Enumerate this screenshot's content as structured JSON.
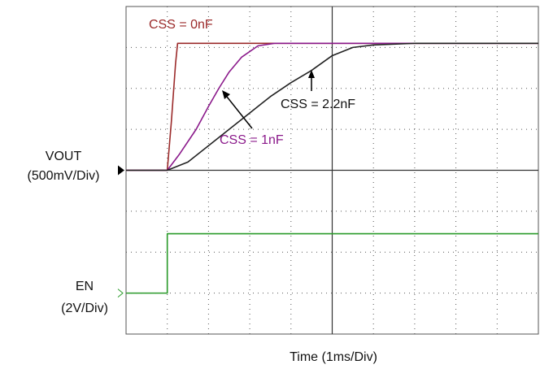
{
  "chart_data": {
    "type": "line",
    "x_label": "Time (1ms/Div)",
    "y_label": "VOUT",
    "y_scale_label": "(500mV/Div)",
    "y2_label": "EN",
    "y2_scale_label": "(2V/Div)",
    "xlim": [
      0,
      10
    ],
    "xticks": [
      0,
      1,
      2,
      3,
      4,
      5,
      6,
      7,
      8,
      9,
      10
    ],
    "ylim": [
      -2,
      2
    ],
    "yticks": [
      -2,
      -1.5,
      -1,
      -0.5,
      0,
      0.5,
      1,
      1.5,
      2
    ],
    "y2lim": [
      -2,
      14
    ],
    "grid": true,
    "series": [
      {
        "name": "CSS = 0nF",
        "color": "#9b2a2a",
        "x": [
          0,
          1,
          1.1,
          1.2,
          1.25,
          10
        ],
        "values": [
          0,
          0,
          0.6,
          1.3,
          1.55,
          1.55
        ]
      },
      {
        "name": "CSS = 1nF",
        "color": "#8b1a8b",
        "x": [
          0,
          1,
          1.3,
          1.7,
          2.0,
          2.25,
          2.5,
          2.8,
          3.2,
          3.6,
          10
        ],
        "values": [
          0,
          0,
          0.2,
          0.5,
          0.78,
          1.0,
          1.2,
          1.38,
          1.52,
          1.55,
          1.55
        ]
      },
      {
        "name": "CSS = 2.2nF",
        "color": "#222222",
        "x": [
          0,
          1,
          1.5,
          2,
          2.5,
          3,
          3.5,
          4,
          4.5,
          5,
          5.5,
          6,
          7,
          10
        ],
        "values": [
          0,
          0,
          0.1,
          0.3,
          0.5,
          0.7,
          0.9,
          1.07,
          1.22,
          1.4,
          1.5,
          1.53,
          1.55,
          1.55
        ]
      },
      {
        "name": "EN",
        "color": "#2a9a2a",
        "axis": "y2",
        "x": [
          0,
          1,
          1,
          10
        ],
        "values": [
          0,
          0,
          2.9,
          2.9
        ]
      }
    ]
  }
}
